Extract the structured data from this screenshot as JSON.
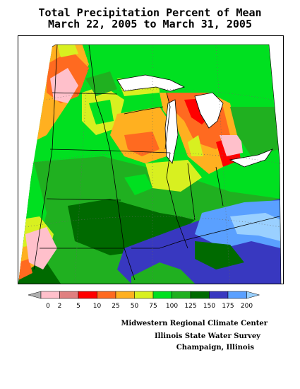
{
  "title": {
    "line1": "Total Precipitation Percent of Mean",
    "line2": "March 22, 2005 to March 31, 2005"
  },
  "legend": {
    "labels": [
      "0",
      "2",
      "5",
      "10",
      "25",
      "50",
      "75",
      "100",
      "125",
      "150",
      "175",
      "200"
    ],
    "colors": [
      "#b0b0b0",
      "#ffc0cb",
      "#e08080",
      "#ff0000",
      "#ff6a20",
      "#ffb020",
      "#d8f020",
      "#00e020",
      "#20b020",
      "#006a00",
      "#3838c0",
      "#5aa0ff",
      "#9ad0ff"
    ]
  },
  "credits": {
    "line1": "Midwestern Regional Climate Center",
    "line2": "Illinois State Water Survey",
    "line3": "Champaign, Illinois"
  }
}
